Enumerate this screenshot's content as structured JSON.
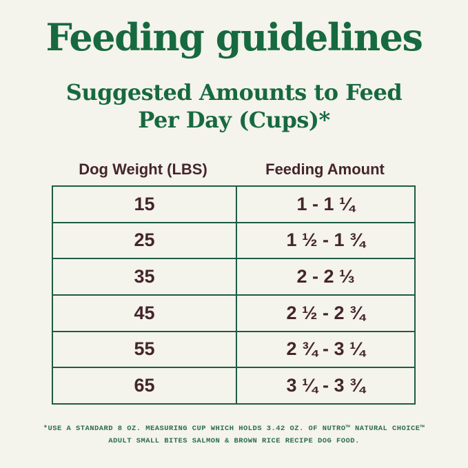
{
  "page": {
    "title": "Feeding guidelines",
    "subtitle_line1": "Suggested Amounts to Feed",
    "subtitle_line2": "Per Day (Cups)*",
    "colors": {
      "background": "#f4f3ec",
      "heading_green": "#17693f",
      "table_border_green": "#1d5b45",
      "table_text_maroon": "#44252c",
      "footnote_green": "#2c6d4e"
    }
  },
  "table": {
    "columns": [
      "Dog Weight (LBS)",
      "Feeding Amount"
    ],
    "rows": [
      {
        "weight": "15",
        "amount": "1 - 1 ¼"
      },
      {
        "weight": "25",
        "amount": "1 ½ - 1 ¾"
      },
      {
        "weight": "35",
        "amount": "2 - 2 ⅓"
      },
      {
        "weight": "45",
        "amount": "2 ½ - 2 ¾"
      },
      {
        "weight": "55",
        "amount": "2 ¾ - 3 ¼"
      },
      {
        "weight": "65",
        "amount": "3 ¼ - 3 ¾"
      }
    ]
  },
  "footnote": {
    "line1": "*USE A STANDARD 8 OZ. MEASURING CUP WHICH HOLDS 3.42 OZ. OF NUTRO™ NATURAL CHOICE™",
    "line2": "ADULT SMALL BITES SALMON & BROWN RICE RECIPE DOG FOOD."
  },
  "chart_data": {
    "type": "table",
    "title": "Feeding guidelines",
    "subtitle": "Suggested Amounts to Feed Per Day (Cups)*",
    "columns": [
      "Dog Weight (LBS)",
      "Feeding Amount"
    ],
    "rows": [
      [
        "15",
        "1 - 1 ¼"
      ],
      [
        "25",
        "1 ½ - 1 ¾"
      ],
      [
        "35",
        "2 - 2 ⅓"
      ],
      [
        "45",
        "2 ½ - 2 ¾"
      ],
      [
        "55",
        "2 ¾ - 3 ¼"
      ],
      [
        "65",
        "3 ¼ - 3 ¾"
      ]
    ],
    "footnote": "*USE A STANDARD 8 OZ. MEASURING CUP WHICH HOLDS 3.42 OZ. OF NUTRO™ NATURAL CHOICE™ ADULT SMALL BITES SALMON & BROWN RICE RECIPE DOG FOOD."
  }
}
